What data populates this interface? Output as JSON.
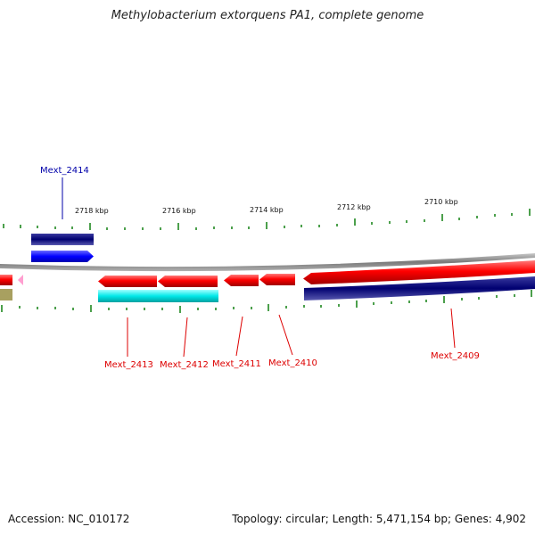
{
  "title": "Methylobacterium extorquens PA1, complete genome",
  "accession": "Accession: NC_010172",
  "summary": "Topology: circular; Length: 5,471,154 bp; Genes: 4,902",
  "scale_labels": [
    "2718 kbp",
    "2716 kbp",
    "2714 kbp",
    "2712 kbp",
    "2710 kbp"
  ],
  "genes": [
    {
      "name": "Mext_2414",
      "color": "#0000aa"
    },
    {
      "name": "Mext_2413",
      "color": "#dd0000"
    },
    {
      "name": "Mext_2412",
      "color": "#dd0000"
    },
    {
      "name": "Mext_2411",
      "color": "#dd0000"
    },
    {
      "name": "Mext_2410",
      "color": "#dd0000"
    },
    {
      "name": "Mext_2409",
      "color": "#dd0000"
    }
  ],
  "colors": {
    "forward_cds": "#ff0000",
    "reverse_cds": "#000080",
    "forward_gene": "#0000ff",
    "reverse_gene": "#00e5e5",
    "backbone": "#808080",
    "tick": "#007700"
  }
}
